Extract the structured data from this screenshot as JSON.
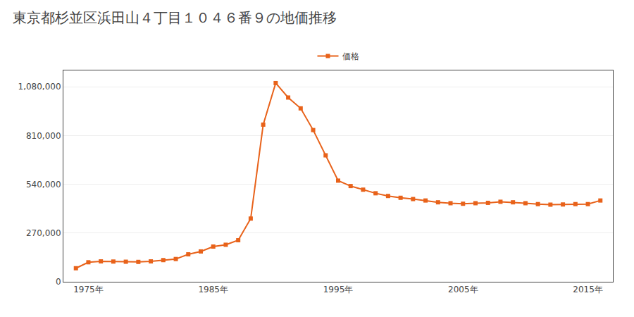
{
  "chart_data": {
    "type": "line",
    "title": "東京都杉並区浜田山４丁目１０４６番９の地価推移",
    "x": [
      1974,
      1975,
      1976,
      1977,
      1978,
      1979,
      1980,
      1981,
      1982,
      1983,
      1984,
      1985,
      1986,
      1987,
      1988,
      1989,
      1990,
      1991,
      1992,
      1993,
      1994,
      1995,
      1996,
      1997,
      1998,
      1999,
      2000,
      2001,
      2002,
      2003,
      2004,
      2005,
      2006,
      2007,
      2008,
      2009,
      2010,
      2011,
      2012,
      2013,
      2014,
      2015,
      2016
    ],
    "series": [
      {
        "name": "価格",
        "color": "#e8621a",
        "marker": "square",
        "line_style": "solid",
        "values": [
          75000,
          108000,
          113000,
          112000,
          111000,
          110000,
          113000,
          120000,
          126000,
          152000,
          168000,
          195000,
          205000,
          230000,
          350000,
          870000,
          1100000,
          1020000,
          960000,
          840000,
          700000,
          560000,
          530000,
          510000,
          490000,
          475000,
          465000,
          458000,
          450000,
          440000,
          435000,
          432000,
          435000,
          437000,
          443000,
          440000,
          435000,
          430000,
          427000,
          428000,
          430000,
          430000,
          450000
        ]
      }
    ],
    "xlim": [
      1973,
      2017
    ],
    "xticks": [
      {
        "value": 1975,
        "label": "1975年"
      },
      {
        "value": 1985,
        "label": "1985年"
      },
      {
        "value": 1995,
        "label": "1995年"
      },
      {
        "value": 2005,
        "label": "2005年"
      },
      {
        "value": 2015,
        "label": "2015年"
      }
    ],
    "ylim": [
      0,
      1170000
    ],
    "yticks": [
      0,
      {
        "value": 270000,
        "label": "270,000"
      },
      {
        "value": 540000,
        "label": "540,000"
      },
      {
        "value": 810000,
        "label": "810,000"
      },
      {
        "value": 1080000,
        "label": "1,080,000"
      }
    ],
    "grid": "y",
    "legend": "top"
  }
}
